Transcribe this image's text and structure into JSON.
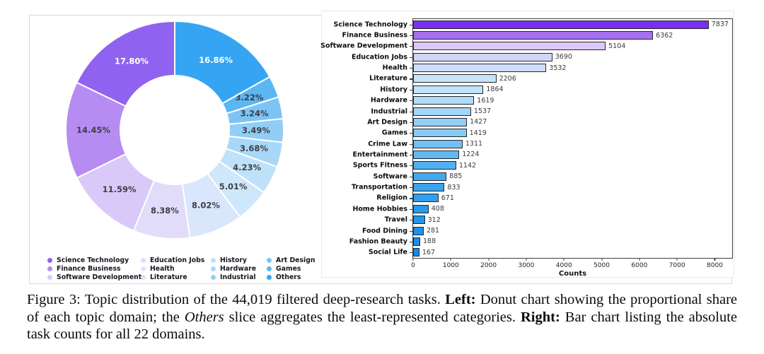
{
  "chart_data": [
    {
      "type": "pie",
      "subtype": "donut",
      "start_angle": 90,
      "counterclock": true,
      "inner_radius_ratio": 0.5,
      "slices": [
        {
          "label": "Science Technology",
          "pct": 17.8,
          "text": "17.80%",
          "color": "#8f63ef",
          "text_color": "#ffffff"
        },
        {
          "label": "Finance Business",
          "pct": 14.45,
          "text": "14.45%",
          "color": "#b68cf3",
          "text_color": "#3d3f46"
        },
        {
          "label": "Software Development",
          "pct": 11.59,
          "text": "11.59%",
          "color": "#d9c9f8",
          "text_color": "#3d3f46"
        },
        {
          "label": "Education Jobs",
          "pct": 8.38,
          "text": "8.38%",
          "color": "#e1dcfa",
          "text_color": "#3d3f46"
        },
        {
          "label": "Health",
          "pct": 8.02,
          "text": "8.02%",
          "color": "#dae6fb",
          "text_color": "#3d3f46"
        },
        {
          "label": "Literature",
          "pct": 5.01,
          "text": "5.01%",
          "color": "#cfe7fb",
          "text_color": "#3d3f46"
        },
        {
          "label": "History",
          "pct": 4.23,
          "text": "4.23%",
          "color": "#bfe2fa",
          "text_color": "#3d3f46"
        },
        {
          "label": "Hardware",
          "pct": 3.68,
          "text": "3.68%",
          "color": "#a9d7f8",
          "text_color": "#3d3f46"
        },
        {
          "label": "Industrial",
          "pct": 3.49,
          "text": "3.49%",
          "color": "#92cdf6",
          "text_color": "#3d3f46"
        },
        {
          "label": "Art Design",
          "pct": 3.24,
          "text": "3.24%",
          "color": "#7dc4f5",
          "text_color": "#3d3f46"
        },
        {
          "label": "Games",
          "pct": 3.22,
          "text": "3.22%",
          "color": "#5cb6f2",
          "text_color": "#3d3f46"
        },
        {
          "label": "Others",
          "pct": 16.86,
          "text": "16.86%",
          "color": "#35a5f3",
          "text_color": "#ffffff"
        }
      ],
      "legend_columns": [
        [
          0,
          1,
          2
        ],
        [
          3,
          4,
          5
        ],
        [
          6,
          7,
          8
        ],
        [
          9,
          10,
          11
        ]
      ],
      "legend_position": "bottom"
    },
    {
      "type": "bar",
      "orientation": "horizontal",
      "categories": [
        "Science Technology",
        "Finance Business",
        "Software Development",
        "Education Jobs",
        "Health",
        "Literature",
        "History",
        "Hardware",
        "Industrial",
        "Art Design",
        "Games",
        "Crime Law",
        "Entertainment",
        "Sports Fitness",
        "Software",
        "Transportation",
        "Religion",
        "Home Hobbies",
        "Travel",
        "Food Dining",
        "Fashion Beauty",
        "Social Life"
      ],
      "values": [
        7837,
        6362,
        5104,
        3690,
        3532,
        2206,
        1864,
        1619,
        1537,
        1427,
        1419,
        1311,
        1224,
        1142,
        885,
        833,
        671,
        408,
        312,
        281,
        188,
        167
      ],
      "colors": [
        "#7b2ff2",
        "#a671f1",
        "#dcc8f8",
        "#cfd6f9",
        "#cedefa",
        "#c5e3fa",
        "#bfe4fa",
        "#afdbf9",
        "#a4d6f8",
        "#93cef7",
        "#88caf6",
        "#73c0f4",
        "#62b8f3",
        "#51b0f1",
        "#42a9f0",
        "#3aa4ef",
        "#309fee",
        "#2899ec",
        "#2495eb",
        "#2091ea",
        "#1c8de9",
        "#1889e9"
      ],
      "xlabel": "Counts",
      "xticks": [
        0,
        1000,
        2000,
        3000,
        4000,
        5000,
        6000,
        7000,
        8000
      ],
      "xlim": [
        0,
        8460
      ],
      "grid": false,
      "bar_edge_color": "#262626"
    }
  ],
  "caption": {
    "segments": [
      {
        "text": "Figure 3: Topic distribution of the 44,019 filtered deep-research tasks. ",
        "bold": false,
        "italic": false
      },
      {
        "text": "Left:",
        "bold": true,
        "italic": false
      },
      {
        "text": " Donut chart showing the proportional share of each topic domain; the ",
        "bold": false,
        "italic": false
      },
      {
        "text": "Others",
        "bold": false,
        "italic": true
      },
      {
        "text": " slice aggregates the least-represented categories. ",
        "bold": false,
        "italic": false
      },
      {
        "text": "Right:",
        "bold": true,
        "italic": false
      },
      {
        "text": " Bar chart listing the absolute task counts for all 22 domains.",
        "bold": false,
        "italic": false
      }
    ]
  }
}
